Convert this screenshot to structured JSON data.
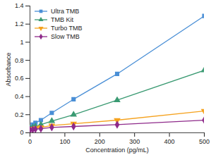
{
  "chart_data": {
    "type": "line",
    "x_label": "Concentration (pg/mL)",
    "y_label": "Absorbance",
    "x": [
      0,
      7.8,
      15.6,
      31.25,
      62.5,
      125,
      250,
      500
    ],
    "series": [
      {
        "name": "Ultra TMB",
        "color": "#4a8fd6",
        "marker": "square",
        "values": [
          0.06,
          0.09,
          0.11,
          0.14,
          0.22,
          0.37,
          0.65,
          1.29
        ]
      },
      {
        "name": "TMB Kit",
        "color": "#3a9a72",
        "marker": "triangle",
        "values": [
          0.05,
          0.06,
          0.07,
          0.09,
          0.13,
          0.2,
          0.36,
          0.69
        ]
      },
      {
        "name": "Turbo TMB",
        "color": "#f5a21e",
        "marker": "triangle-down",
        "values": [
          0.04,
          0.045,
          0.05,
          0.06,
          0.08,
          0.1,
          0.14,
          0.24
        ]
      },
      {
        "name": "Slow TMB",
        "color": "#8e2a8a",
        "marker": "diamond",
        "values": [
          0.03,
          0.035,
          0.04,
          0.045,
          0.06,
          0.07,
          0.09,
          0.14
        ]
      }
    ],
    "xlim": [
      0,
      500
    ],
    "xticks": [
      0,
      100,
      200,
      300,
      400,
      500
    ],
    "ylim": [
      0,
      1.4
    ],
    "yticks": [
      0,
      0.2,
      0.4,
      0.6,
      0.8,
      1,
      1.2,
      1.4
    ],
    "grid": false,
    "legend": "upper left"
  }
}
